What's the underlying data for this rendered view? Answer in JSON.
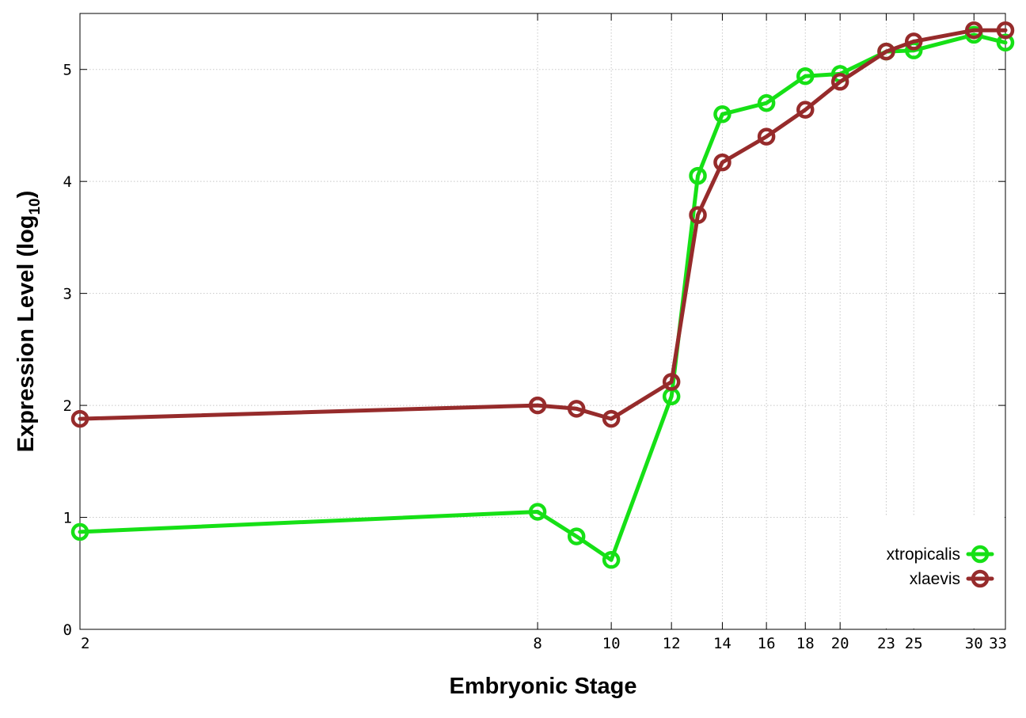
{
  "chart_data": {
    "type": "line",
    "xlabel": "Embryonic Stage",
    "ylabel": "Expression Level (log",
    "ylabel_sub": "10",
    "ylabel_close": ")",
    "x_scale": "log",
    "x": [
      2,
      8,
      9,
      10,
      12,
      13,
      14,
      16,
      18,
      20,
      23,
      25,
      30,
      33
    ],
    "xticks": [
      2,
      8,
      10,
      12,
      14,
      16,
      18,
      20,
      23,
      25,
      30,
      33
    ],
    "xticks_labels": [
      "2",
      "8",
      "10",
      "12",
      "14",
      "16",
      "18",
      "20",
      "23",
      "25",
      "30",
      "33"
    ],
    "yticks": [
      0,
      1,
      2,
      3,
      4,
      5
    ],
    "yticks_labels": [
      "0",
      "1",
      "2",
      "3",
      "4",
      "5"
    ],
    "xlim": [
      2,
      33
    ],
    "ylim": [
      0,
      5.5
    ],
    "grid": true,
    "legend_position": "bottom-right",
    "series": [
      {
        "name": "xtropicalis",
        "color": "#16e016",
        "values": [
          0.87,
          1.05,
          0.83,
          0.62,
          2.08,
          4.05,
          4.6,
          4.7,
          4.94,
          4.96,
          5.16,
          5.17,
          5.31,
          5.24
        ]
      },
      {
        "name": "xlaevis",
        "color": "#962b2b",
        "values": [
          1.88,
          2.0,
          1.97,
          1.88,
          2.21,
          3.7,
          4.17,
          4.4,
          4.64,
          4.89,
          5.16,
          5.25,
          5.35,
          5.35
        ]
      }
    ]
  }
}
